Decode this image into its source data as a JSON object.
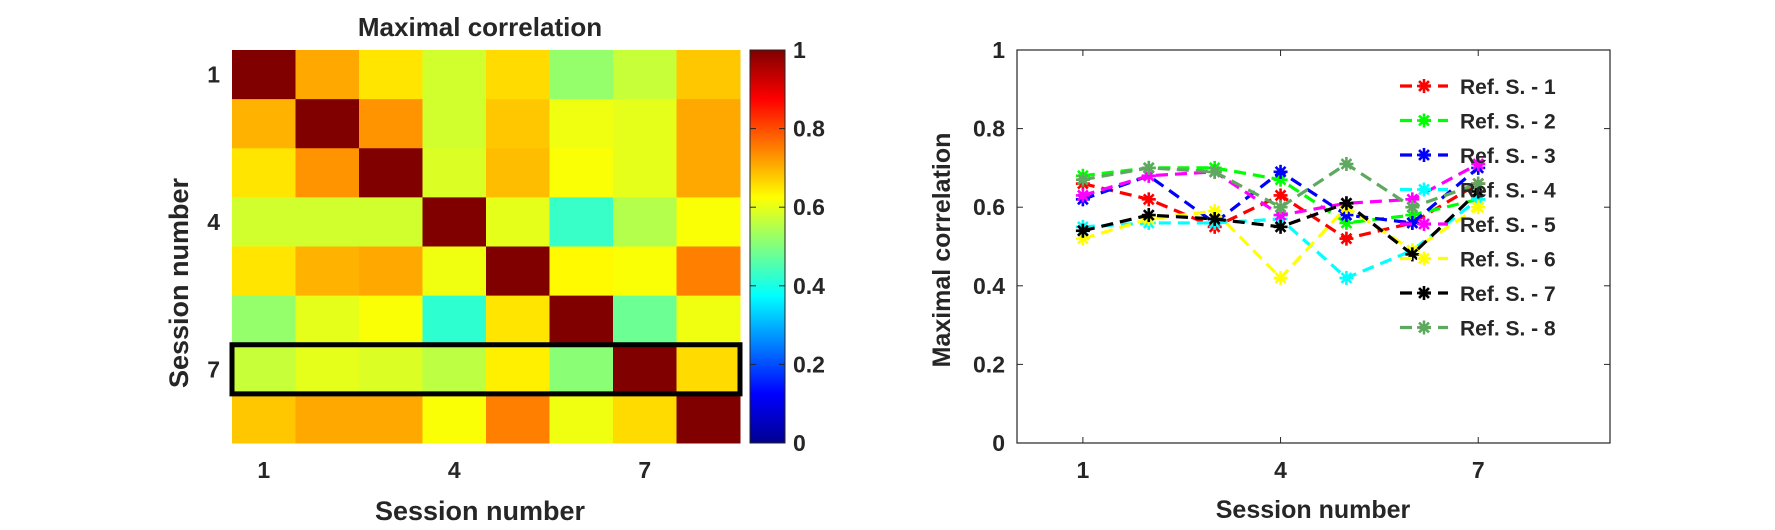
{
  "chart_data": [
    {
      "type": "heatmap",
      "title": "Maximal correlation",
      "xlabel": "Session number",
      "ylabel": "Session number",
      "x_tick_labels": [
        "1",
        "4",
        "7"
      ],
      "y_tick_labels": [
        "1",
        "4",
        "7"
      ],
      "x_ticks": [
        1,
        4,
        7
      ],
      "y_ticks": [
        1,
        4,
        7
      ],
      "clim": [
        0,
        1
      ],
      "colormap": "jet",
      "colorbar_ticks": [
        "0",
        "0.2",
        "0.4",
        "0.6",
        "0.8",
        "1"
      ],
      "colorbar_tick_values": [
        0,
        0.2,
        0.4,
        0.6,
        0.8,
        1
      ],
      "highlight_row": 7,
      "matrix": [
        [
          1.0,
          0.71,
          0.65,
          0.58,
          0.66,
          0.52,
          0.57,
          0.68
        ],
        [
          0.7,
          1.0,
          0.73,
          0.58,
          0.68,
          0.61,
          0.6,
          0.71
        ],
        [
          0.65,
          0.73,
          1.0,
          0.59,
          0.69,
          0.62,
          0.6,
          0.71
        ],
        [
          0.58,
          0.58,
          0.58,
          1.0,
          0.6,
          0.43,
          0.55,
          0.62
        ],
        [
          0.65,
          0.7,
          0.71,
          0.61,
          1.0,
          0.63,
          0.62,
          0.75
        ],
        [
          0.52,
          0.6,
          0.62,
          0.42,
          0.65,
          1.0,
          0.48,
          0.61
        ],
        [
          0.57,
          0.6,
          0.59,
          0.56,
          0.64,
          0.51,
          1.0,
          0.66
        ],
        [
          0.68,
          0.71,
          0.71,
          0.62,
          0.75,
          0.61,
          0.66,
          1.0
        ]
      ]
    },
    {
      "type": "line",
      "xlabel": "Session number",
      "ylabel": "Maximal correlation",
      "xlim": [
        0,
        9
      ],
      "ylim": [
        0,
        1
      ],
      "x_tick_labels": [
        "1",
        "4",
        "7"
      ],
      "x_ticks": [
        1,
        4,
        7
      ],
      "y_tick_labels": [
        "0",
        "0.2",
        "0.4",
        "0.6",
        "0.8",
        "1"
      ],
      "y_ticks": [
        0,
        0.2,
        0.4,
        0.6,
        0.8,
        1
      ],
      "legend_position": "top-right",
      "x": [
        1,
        2,
        3,
        4,
        5,
        6,
        7
      ],
      "series": [
        {
          "name": "Ref. S. - 1",
          "color": "#ff0000",
          "values": [
            0.66,
            0.62,
            0.55,
            0.63,
            0.52,
            0.56,
            0.66
          ]
        },
        {
          "name": "Ref. S. - 2",
          "color": "#00ff00",
          "values": [
            0.68,
            0.7,
            0.7,
            0.67,
            0.56,
            0.58,
            0.62
          ]
        },
        {
          "name": "Ref. S. - 3",
          "color": "#0000ff",
          "values": [
            0.62,
            0.68,
            0.56,
            0.69,
            0.58,
            0.56,
            0.7
          ]
        },
        {
          "name": "Ref. S. - 4",
          "color": "#00ffff",
          "values": [
            0.55,
            0.56,
            0.56,
            0.57,
            0.42,
            0.49,
            0.62
          ]
        },
        {
          "name": "Ref. S. - 5",
          "color": "#ff00ff",
          "values": [
            0.63,
            0.68,
            0.69,
            0.58,
            0.61,
            0.62,
            0.71
          ]
        },
        {
          "name": "Ref. S. - 6",
          "color": "#ffff00",
          "values": [
            0.52,
            0.57,
            0.59,
            0.42,
            0.6,
            0.49,
            0.6
          ]
        },
        {
          "name": "Ref. S. - 7",
          "color": "#000000",
          "values": [
            0.54,
            0.58,
            0.57,
            0.55,
            0.61,
            0.48,
            0.64
          ]
        },
        {
          "name": "Ref. S. - 8",
          "color": "#5fa85f",
          "values": [
            0.67,
            0.7,
            0.69,
            0.6,
            0.71,
            0.6,
            0.66
          ]
        }
      ]
    }
  ]
}
